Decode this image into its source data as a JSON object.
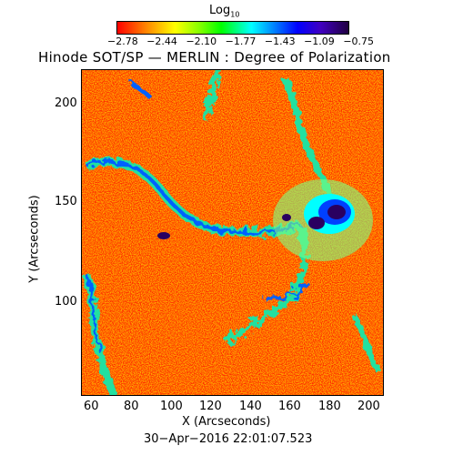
{
  "colorbar": {
    "title_base": "Log",
    "title_sub": "10",
    "ticks": [
      "−2.78",
      "−2.44",
      "−2.10",
      "−1.77",
      "−1.43",
      "−1.09",
      "−0.75"
    ]
  },
  "title": "Hinode SOT/SP — MERLIN : Degree of Polarization",
  "axes": {
    "xlabel": "X (Arcseconds)",
    "ylabel": "Y (Arcseconds)",
    "xticks": [
      "60",
      "80",
      "100",
      "120",
      "140",
      "160",
      "180",
      "200"
    ],
    "yticks": [
      "200",
      "150",
      "100"
    ]
  },
  "timestamp": "30−Apr−2016 22:01:07.523",
  "colors": {
    "background_field": "#ff3000",
    "speckle": "#ff8c00",
    "network_mid": "#20e0a0",
    "network_strong": "#0060ff",
    "sunspot_core": "#2a0060"
  }
}
